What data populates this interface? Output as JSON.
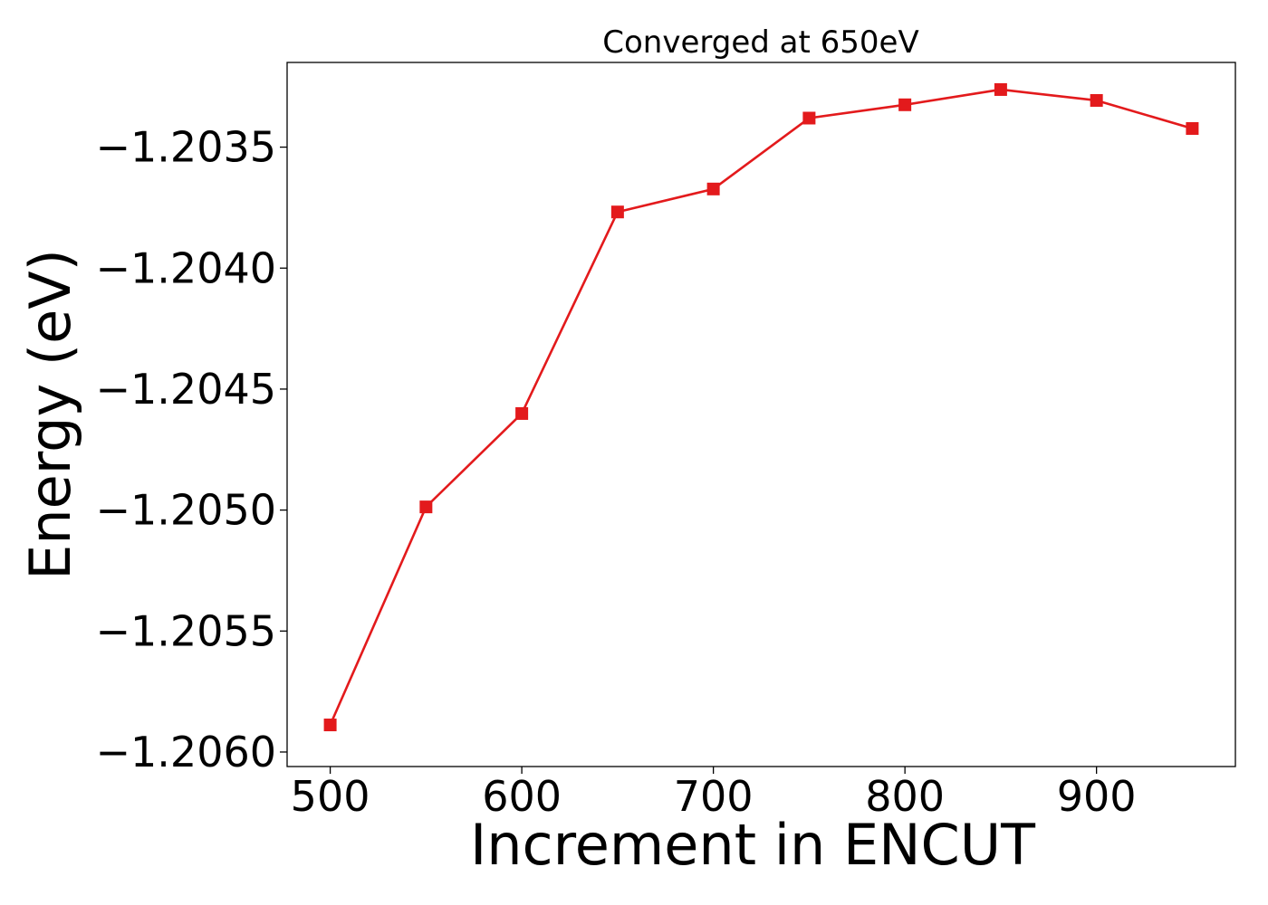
{
  "chart_data": {
    "type": "line",
    "title": "Converged at 650eV",
    "xlabel": "Increment in ENCUT",
    "ylabel": "Energy (eV)",
    "xlim": [
      477.5,
      972.5
    ],
    "ylim": [
      -1.20606,
      -1.20315
    ],
    "xticks": [
      500,
      600,
      700,
      800,
      900
    ],
    "xtick_labels": [
      "500",
      "600",
      "700",
      "800",
      "900"
    ],
    "yticks": [
      -1.206,
      -1.2055,
      -1.205,
      -1.2045,
      -1.204,
      -1.2035
    ],
    "ytick_labels": [
      "−1.2060",
      "−1.2055",
      "−1.2050",
      "−1.2045",
      "−1.2040",
      "−1.2035"
    ],
    "grid": false,
    "series": [
      {
        "color": "#e31a1c",
        "marker": "square",
        "x": [
          500,
          550,
          600,
          650,
          700,
          750,
          800,
          850,
          900,
          950
        ],
        "y": [
          -1.205888,
          -1.204987,
          -1.204601,
          -1.203768,
          -1.203673,
          -1.20338,
          -1.203325,
          -1.203262,
          -1.203307,
          -1.203423
        ]
      }
    ]
  }
}
